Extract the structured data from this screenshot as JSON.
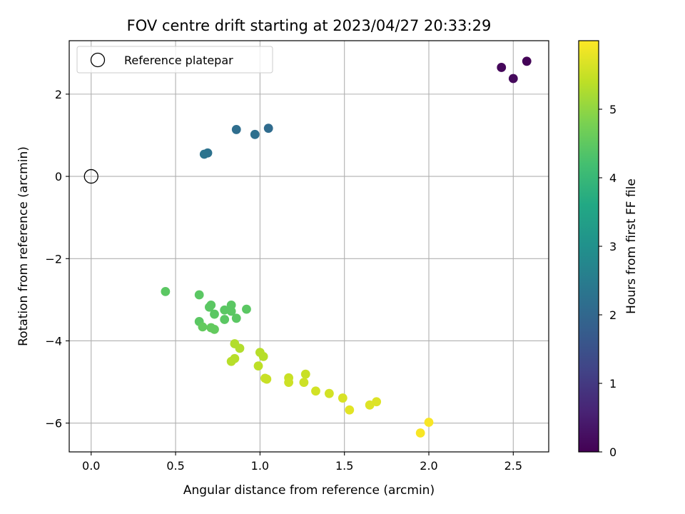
{
  "chart_data": {
    "type": "scatter",
    "title": "FOV centre drift starting at 2023/04/27 20:33:29",
    "xlabel": "Angular distance from reference (arcmin)",
    "ylabel": "Rotation from reference (arcmin)",
    "xlim": [
      -0.13,
      2.71
    ],
    "ylim": [
      -6.7,
      3.3
    ],
    "xticks": [
      0.0,
      0.5,
      1.0,
      1.5,
      2.0,
      2.5
    ],
    "xtick_labels": [
      "0.0",
      "0.5",
      "1.0",
      "1.5",
      "2.0",
      "2.5"
    ],
    "yticks": [
      -6,
      -4,
      -2,
      0,
      2
    ],
    "ytick_labels": [
      "−6",
      "−4",
      "−2",
      "0",
      "2"
    ],
    "grid": true,
    "legend": {
      "position": "top-left",
      "entries": [
        "Reference platepar"
      ]
    },
    "reference_point": {
      "x": 0.0,
      "y": 0.0
    },
    "colorbar": {
      "label": "Hours from first FF file",
      "range": [
        0,
        6
      ],
      "ticks": [
        0,
        1,
        2,
        3,
        4,
        5
      ],
      "tick_labels": [
        "0",
        "1",
        "2",
        "3",
        "4",
        "5"
      ],
      "colormap": "viridis"
    },
    "points": [
      {
        "x": 2.58,
        "y": 2.8,
        "c": 0.05
      },
      {
        "x": 2.43,
        "y": 2.65,
        "c": 0.1
      },
      {
        "x": 2.5,
        "y": 2.38,
        "c": 0.15
      },
      {
        "x": 1.05,
        "y": 1.17,
        "c": 2.1
      },
      {
        "x": 0.86,
        "y": 1.14,
        "c": 2.15
      },
      {
        "x": 0.97,
        "y": 1.02,
        "c": 2.2
      },
      {
        "x": 0.69,
        "y": 0.57,
        "c": 2.25
      },
      {
        "x": 0.67,
        "y": 0.54,
        "c": 2.3
      },
      {
        "x": 0.44,
        "y": -2.8,
        "c": 4.45
      },
      {
        "x": 0.64,
        "y": -2.88,
        "c": 4.45
      },
      {
        "x": 0.83,
        "y": -3.13,
        "c": 4.45
      },
      {
        "x": 0.71,
        "y": -3.13,
        "c": 4.45
      },
      {
        "x": 0.7,
        "y": -3.18,
        "c": 4.45
      },
      {
        "x": 0.92,
        "y": -3.23,
        "c": 4.45
      },
      {
        "x": 0.79,
        "y": -3.25,
        "c": 4.45
      },
      {
        "x": 0.83,
        "y": -3.28,
        "c": 4.45
      },
      {
        "x": 0.73,
        "y": -3.35,
        "c": 4.45
      },
      {
        "x": 0.86,
        "y": -3.45,
        "c": 4.45
      },
      {
        "x": 0.79,
        "y": -3.48,
        "c": 4.45
      },
      {
        "x": 0.64,
        "y": -3.53,
        "c": 4.45
      },
      {
        "x": 0.66,
        "y": -3.66,
        "c": 4.55
      },
      {
        "x": 0.71,
        "y": -3.68,
        "c": 4.55
      },
      {
        "x": 0.73,
        "y": -3.72,
        "c": 4.55
      },
      {
        "x": 0.85,
        "y": -4.07,
        "c": 5.3
      },
      {
        "x": 0.88,
        "y": -4.18,
        "c": 5.3
      },
      {
        "x": 1.0,
        "y": -4.28,
        "c": 5.35
      },
      {
        "x": 1.02,
        "y": -4.38,
        "c": 5.35
      },
      {
        "x": 0.85,
        "y": -4.43,
        "c": 5.35
      },
      {
        "x": 0.83,
        "y": -4.5,
        "c": 5.35
      },
      {
        "x": 0.99,
        "y": -4.61,
        "c": 5.4
      },
      {
        "x": 1.27,
        "y": -4.81,
        "c": 5.5
      },
      {
        "x": 1.17,
        "y": -4.9,
        "c": 5.5
      },
      {
        "x": 1.03,
        "y": -4.91,
        "c": 5.5
      },
      {
        "x": 1.04,
        "y": -4.93,
        "c": 5.5
      },
      {
        "x": 1.17,
        "y": -5.01,
        "c": 5.55
      },
      {
        "x": 1.26,
        "y": -5.01,
        "c": 5.55
      },
      {
        "x": 1.33,
        "y": -5.22,
        "c": 5.6
      },
      {
        "x": 1.41,
        "y": -5.28,
        "c": 5.6
      },
      {
        "x": 1.49,
        "y": -5.39,
        "c": 5.65
      },
      {
        "x": 1.69,
        "y": -5.48,
        "c": 5.7
      },
      {
        "x": 1.65,
        "y": -5.56,
        "c": 5.7
      },
      {
        "x": 1.53,
        "y": -5.68,
        "c": 5.75
      },
      {
        "x": 2.0,
        "y": -5.98,
        "c": 5.95
      },
      {
        "x": 1.95,
        "y": -6.24,
        "c": 5.95
      }
    ]
  }
}
